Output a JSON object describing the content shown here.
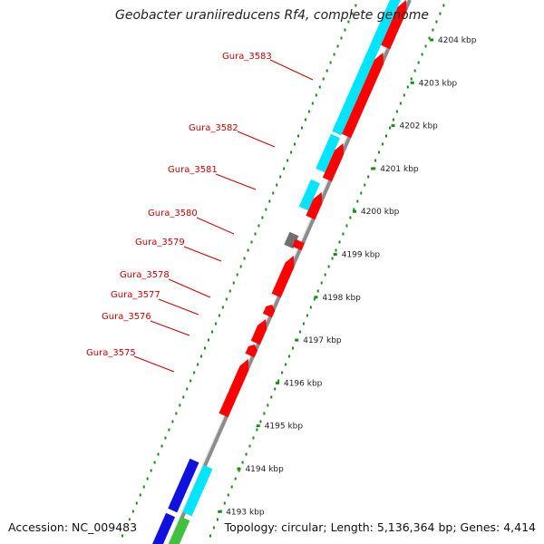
{
  "title": "Geobacter uraniireducens Rf4, complete genome",
  "accession": "Accession: NC_009483",
  "summary": "Topology: circular; Length: 5,136,364 bp; Genes: 4,414",
  "colors": {
    "backbone": "#8c8c8c",
    "gene_forward": "#ff0000",
    "cds_forward": "#00e5ff",
    "gene_reverse": "#1010e0",
    "cds_reverse": "#00e5ff",
    "rna": "#40c040",
    "pseudo": "#707070",
    "label": "#cc0000",
    "scale_dots": "#1a8c1a"
  },
  "scale": {
    "unit": "kbp",
    "ticks": [
      {
        "kbp": 4204,
        "label": "4204 kbp"
      },
      {
        "kbp": 4203,
        "label": "4203 kbp"
      },
      {
        "kbp": 4202,
        "label": "4202 kbp"
      },
      {
        "kbp": 4201,
        "label": "4201 kbp"
      },
      {
        "kbp": 4200,
        "label": "4200 kbp"
      },
      {
        "kbp": 4199,
        "label": "4199 kbp"
      },
      {
        "kbp": 4198,
        "label": "4198 kbp"
      },
      {
        "kbp": 4197,
        "label": "4197 kbp"
      },
      {
        "kbp": 4196,
        "label": "4196 kbp"
      },
      {
        "kbp": 4195,
        "label": "4195 kbp"
      },
      {
        "kbp": 4194,
        "label": "4194 kbp"
      },
      {
        "kbp": 4193,
        "label": "4193 kbp"
      }
    ]
  },
  "gene_labels": [
    {
      "name": "Gura_3583"
    },
    {
      "name": "Gura_3582"
    },
    {
      "name": "Gura_3581"
    },
    {
      "name": "Gura_3580"
    },
    {
      "name": "Gura_3579"
    },
    {
      "name": "Gura_3578"
    },
    {
      "name": "Gura_3577"
    },
    {
      "name": "Gura_3576"
    },
    {
      "name": "Gura_3575"
    }
  ]
}
